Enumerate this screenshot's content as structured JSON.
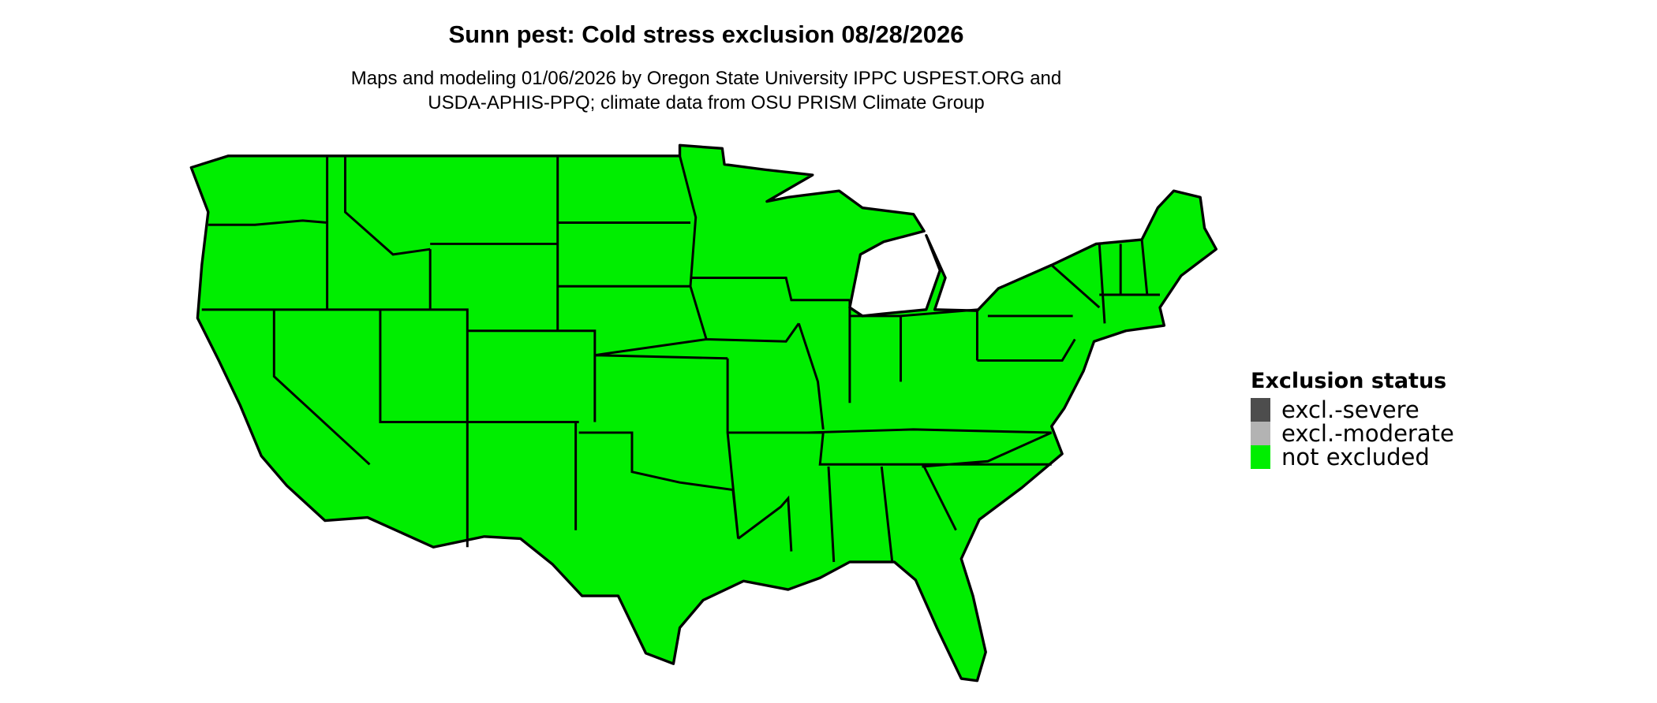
{
  "title": "Sunn pest: Cold stress exclusion 08/28/2026",
  "subtitle_lines": [
    "Maps and modeling 01/06/2026 by Oregon State University IPPC USPEST.ORG and",
    "USDA-APHIS-PPQ; climate data from OSU PRISM Climate Group"
  ],
  "map": {
    "region": "Contiguous United States",
    "state_borders": true,
    "fill_status": "not excluded"
  },
  "legend": {
    "title": "Exclusion status",
    "items": [
      {
        "label": "excl.-severe",
        "color": "#4d4d4d"
      },
      {
        "label": "excl.-moderate",
        "color": "#b3b3b3"
      },
      {
        "label": "not excluded",
        "color": "#00ee00"
      }
    ]
  }
}
